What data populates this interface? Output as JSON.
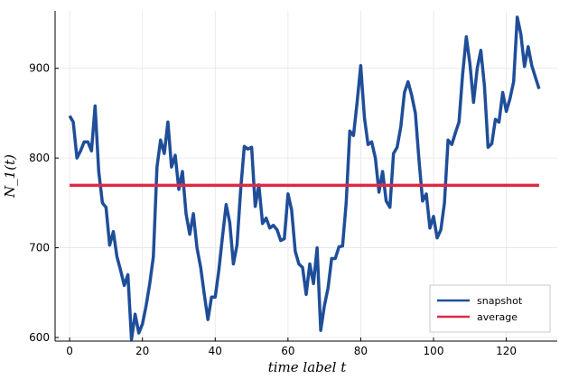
{
  "chart_data": {
    "type": "line",
    "xlabel": "time label t",
    "ylabel": "N_1(t)",
    "xlim": [
      -4,
      134
    ],
    "ylim": [
      596,
      964
    ],
    "x_ticks": [
      0,
      20,
      40,
      60,
      80,
      100,
      120
    ],
    "y_ticks": [
      600,
      700,
      800,
      900
    ],
    "grid": true,
    "legend_position": "bottom-right",
    "series": [
      {
        "name": "snapshot",
        "color": "#1f4e99",
        "x": [
          0,
          1,
          2,
          3,
          4,
          5,
          6,
          7,
          8,
          9,
          10,
          11,
          12,
          13,
          14,
          15,
          16,
          17,
          18,
          19,
          20,
          21,
          22,
          23,
          24,
          25,
          26,
          27,
          28,
          29,
          30,
          31,
          32,
          33,
          34,
          35,
          36,
          37,
          38,
          39,
          40,
          41,
          42,
          43,
          44,
          45,
          46,
          47,
          48,
          49,
          50,
          51,
          52,
          53,
          54,
          55,
          56,
          57,
          58,
          59,
          60,
          61,
          62,
          63,
          64,
          65,
          66,
          67,
          68,
          69,
          70,
          71,
          72,
          73,
          74,
          75,
          76,
          77,
          78,
          79,
          80,
          81,
          82,
          83,
          84,
          85,
          86,
          87,
          88,
          89,
          90,
          91,
          92,
          93,
          94,
          95,
          96,
          97,
          98,
          99,
          100,
          101,
          102,
          103,
          104,
          105,
          106,
          107,
          108,
          109,
          110,
          111,
          112,
          113,
          114,
          115,
          116,
          117,
          118,
          119,
          120,
          121,
          122,
          123,
          124,
          125,
          126,
          127,
          128,
          129
        ],
        "values": [
          847,
          840,
          800,
          808,
          818,
          818,
          808,
          858,
          785,
          750,
          745,
          703,
          718,
          690,
          675,
          658,
          670,
          598,
          626,
          605,
          615,
          635,
          660,
          690,
          790,
          820,
          805,
          840,
          790,
          803,
          765,
          785,
          738,
          715,
          738,
          700,
          678,
          648,
          620,
          645,
          645,
          675,
          712,
          748,
          728,
          682,
          703,
          765,
          813,
          810,
          812,
          746,
          770,
          727,
          733,
          722,
          725,
          720,
          708,
          710,
          760,
          742,
          696,
          682,
          678,
          648,
          682,
          660,
          700,
          608,
          635,
          655,
          688,
          688,
          701,
          702,
          750,
          830,
          825,
          862,
          903,
          845,
          815,
          818,
          800,
          762,
          785,
          752,
          745,
          805,
          812,
          835,
          873,
          885,
          870,
          850,
          798,
          752,
          760,
          722,
          735,
          711,
          720,
          750,
          820,
          815,
          828,
          840,
          893,
          935,
          905,
          862,
          900,
          920,
          880,
          812,
          816,
          843,
          840,
          873,
          852,
          866,
          885,
          957,
          938,
          902,
          924,
          903,
          890,
          877
        ]
      },
      {
        "name": "average",
        "color": "#dc2a46",
        "x": [
          0,
          129
        ],
        "values": [
          769.5,
          769.5
        ]
      }
    ]
  }
}
